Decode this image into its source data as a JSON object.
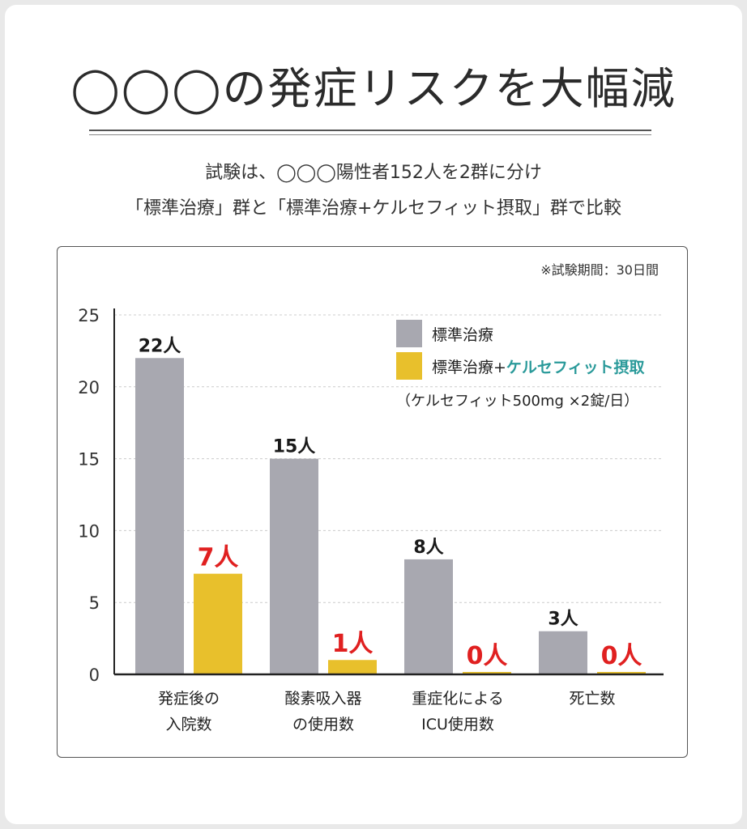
{
  "heading": {
    "title": "◯◯◯の発症リスクを大幅減",
    "line1": "試験は、◯◯◯陽性者152人を2群に分け",
    "line2": "「標準治療」群と「標準治療+ケルセフィット摂取」群で比較"
  },
  "chart_data": {
    "type": "bar",
    "note": "※試験期間：30日間",
    "categories": [
      [
        "発症後の",
        "入院数"
      ],
      [
        "酸素吸入器",
        "の使用数"
      ],
      [
        "重症化による",
        "ICU使用数"
      ],
      [
        "死亡数"
      ]
    ],
    "series": [
      {
        "name": "標準治療",
        "values": [
          22,
          15,
          8,
          3
        ],
        "labels": [
          "22人",
          "15人",
          "8人",
          "3人"
        ],
        "color": "#a8a8b0",
        "label_color": "#1a1a1a"
      },
      {
        "name": "標準治療+ケルセフィット摂取",
        "name_prefix": "標準治療+",
        "name_highlight": "ケルセフィット摂取",
        "values": [
          7,
          1,
          0,
          0
        ],
        "labels": [
          "7人",
          "1人",
          "0人",
          "0人"
        ],
        "color": "#e8c02c",
        "label_color": "#e02020"
      }
    ],
    "legend_note": "（ケルセフィット500mg ×2錠/日）",
    "legend_position": "top-right",
    "yticks": [
      0,
      5,
      10,
      15,
      20,
      25
    ],
    "ylim": [
      0,
      25
    ],
    "grid": true,
    "colors": {
      "highlight_text": "#2a9a9a",
      "grid": "#cccccc",
      "axis": "#222222"
    }
  }
}
